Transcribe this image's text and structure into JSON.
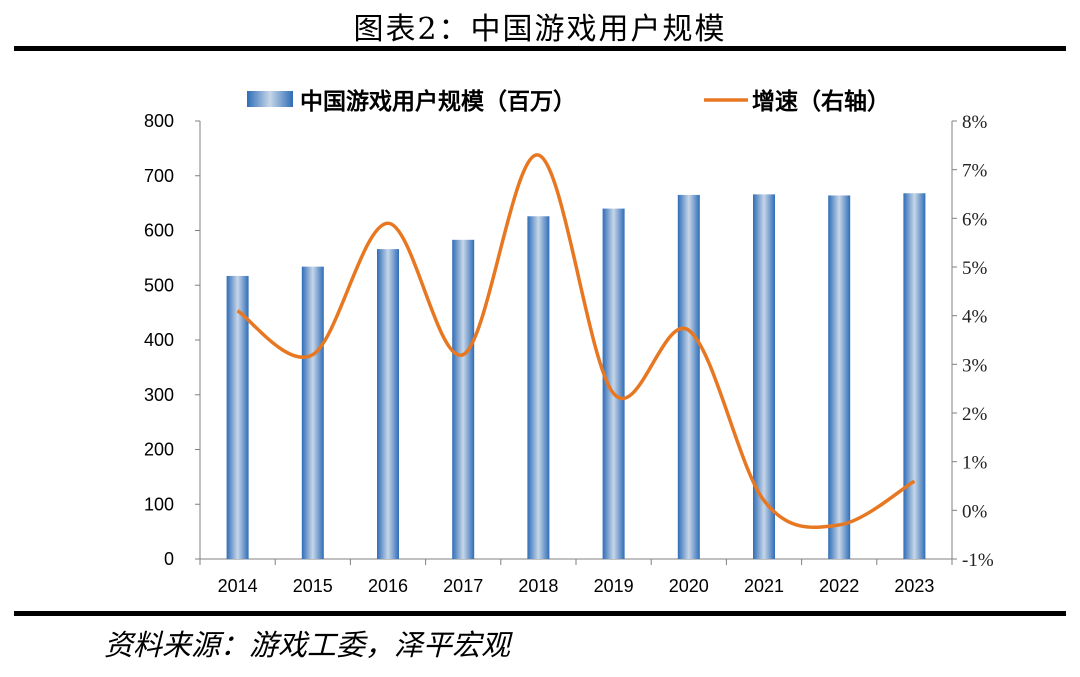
{
  "figure_title": "图表2：中国游戏用户规模",
  "source_note": "资料来源：游戏工委，泽平宏观",
  "colors": {
    "bar": "#2f6db7",
    "bar_highlight": "#c7d6e8",
    "line": "#e87722",
    "axis": "#808080"
  },
  "chart_data": {
    "type": "bar",
    "categories": [
      "2014",
      "2015",
      "2016",
      "2017",
      "2018",
      "2019",
      "2020",
      "2021",
      "2022",
      "2023"
    ],
    "series": [
      {
        "name": "中国游戏用户规模（百万）",
        "kind": "bar",
        "axis": "left",
        "values": [
          517,
          534,
          566,
          583,
          626,
          640,
          665,
          666,
          664,
          668
        ]
      },
      {
        "name": "增速（右轴）",
        "kind": "line",
        "axis": "right",
        "values": [
          0.041,
          0.032,
          0.059,
          0.032,
          0.073,
          0.024,
          0.037,
          0.002,
          -0.003,
          0.006
        ]
      }
    ],
    "ylim": [
      0,
      800
    ],
    "yticks": [
      "0",
      "100",
      "200",
      "300",
      "400",
      "500",
      "600",
      "700",
      "800"
    ],
    "y2lim": [
      -0.01,
      0.08
    ],
    "y2ticks": [
      "-1%",
      "0%",
      "1%",
      "2%",
      "3%",
      "4%",
      "5%",
      "6%",
      "7%",
      "8%"
    ],
    "legend_position": "top",
    "grid": false
  }
}
